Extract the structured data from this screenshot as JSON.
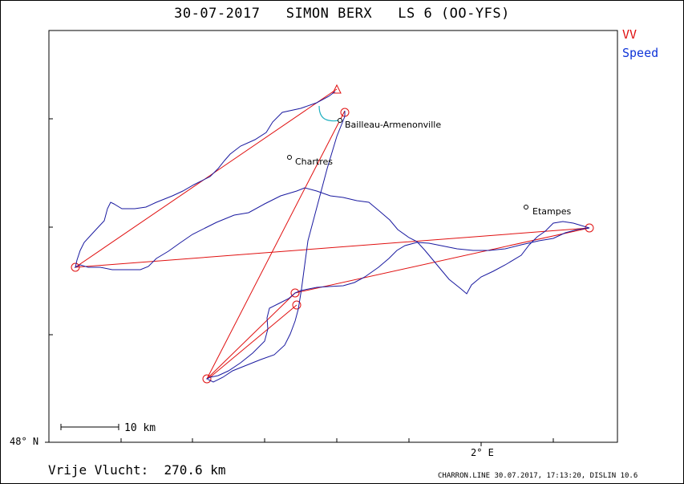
{
  "title": "30-07-2017   SIMON BERX   LS 6 (OO-YFS)",
  "legend": {
    "vv_label": "VV",
    "vv_color": "#e01010",
    "speed_label": "Speed",
    "speed_color": "#1035d8"
  },
  "axes": {
    "lat_label": "48° N",
    "lon_label": "2° E"
  },
  "scale_bar": {
    "label": "10 km"
  },
  "places": [
    {
      "name": "Bailleau-Armenonville"
    },
    {
      "name": "Chartres"
    },
    {
      "name": "Etampes"
    }
  ],
  "footer": {
    "distance": "Vrije Vlucht:  270.6 km",
    "meta": "CHARRON.LINE 30.07.2017, 17:13:20, DISLIN 10.6"
  },
  "colors": {
    "track": "#1a1aa0",
    "track_alt": "#2050e0",
    "climb": "#20b0c0",
    "task": "#e01010"
  }
}
